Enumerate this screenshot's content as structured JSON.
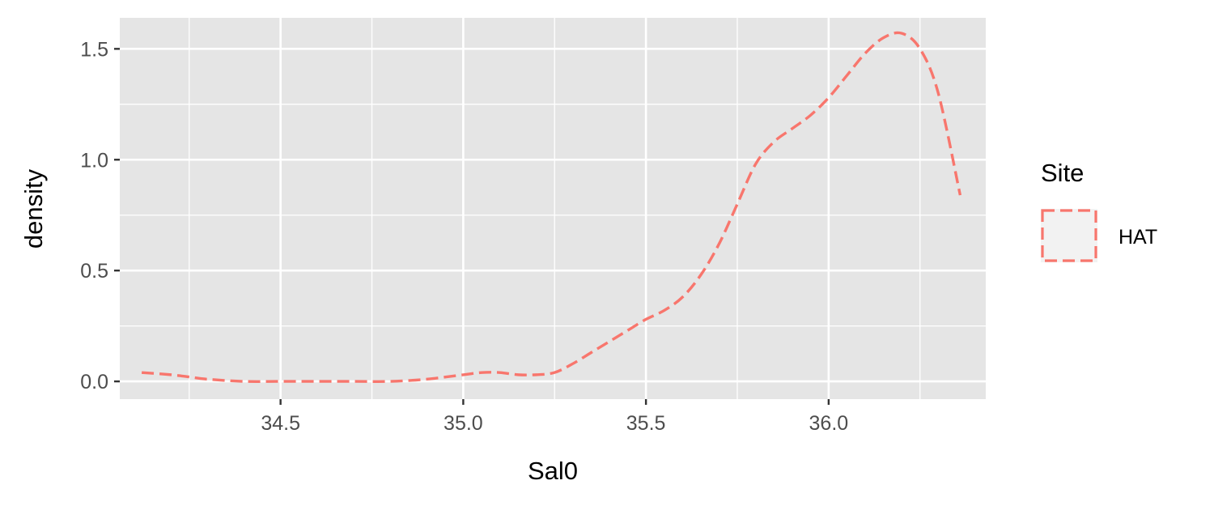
{
  "chart_data": {
    "type": "line",
    "xlabel": "Sal0",
    "ylabel": "density",
    "xlim": [
      34.06,
      36.43
    ],
    "ylim": [
      -0.08,
      1.64
    ],
    "x_ticks": [
      34.5,
      35.0,
      35.5,
      36.0
    ],
    "x_tick_labels": [
      "34.5",
      "35.0",
      "35.5",
      "36.0"
    ],
    "y_ticks": [
      0.0,
      0.5,
      1.0,
      1.5
    ],
    "y_tick_labels": [
      "0.0",
      "0.5",
      "1.0",
      "1.5"
    ],
    "grid": true,
    "panel_background": "#e5e5e5",
    "grid_color": "#ffffff",
    "legend": {
      "title": "Site",
      "position": "right",
      "entries": [
        {
          "label": "HAT",
          "color": "#f8766d",
          "linetype": "dashed"
        }
      ]
    },
    "series": [
      {
        "name": "HAT",
        "color": "#f8766d",
        "linetype": "dashed",
        "x": [
          34.12,
          34.2,
          34.25,
          34.3,
          34.4,
          34.5,
          34.6,
          34.7,
          34.8,
          34.9,
          35.0,
          35.05,
          35.1,
          35.15,
          35.2,
          35.25,
          35.3,
          35.35,
          35.4,
          35.45,
          35.5,
          35.55,
          35.6,
          35.65,
          35.7,
          35.75,
          35.8,
          35.85,
          35.9,
          35.95,
          36.0,
          36.05,
          36.1,
          36.15,
          36.2,
          36.25,
          36.3,
          36.36
        ],
        "y": [
          0.04,
          0.03,
          0.02,
          0.01,
          0.0,
          0.0,
          0.0,
          0.0,
          0.0,
          0.01,
          0.03,
          0.04,
          0.04,
          0.03,
          0.03,
          0.04,
          0.08,
          0.13,
          0.18,
          0.23,
          0.28,
          0.32,
          0.38,
          0.48,
          0.62,
          0.8,
          0.98,
          1.08,
          1.14,
          1.2,
          1.28,
          1.38,
          1.48,
          1.55,
          1.57,
          1.5,
          1.3,
          0.84
        ]
      }
    ]
  }
}
